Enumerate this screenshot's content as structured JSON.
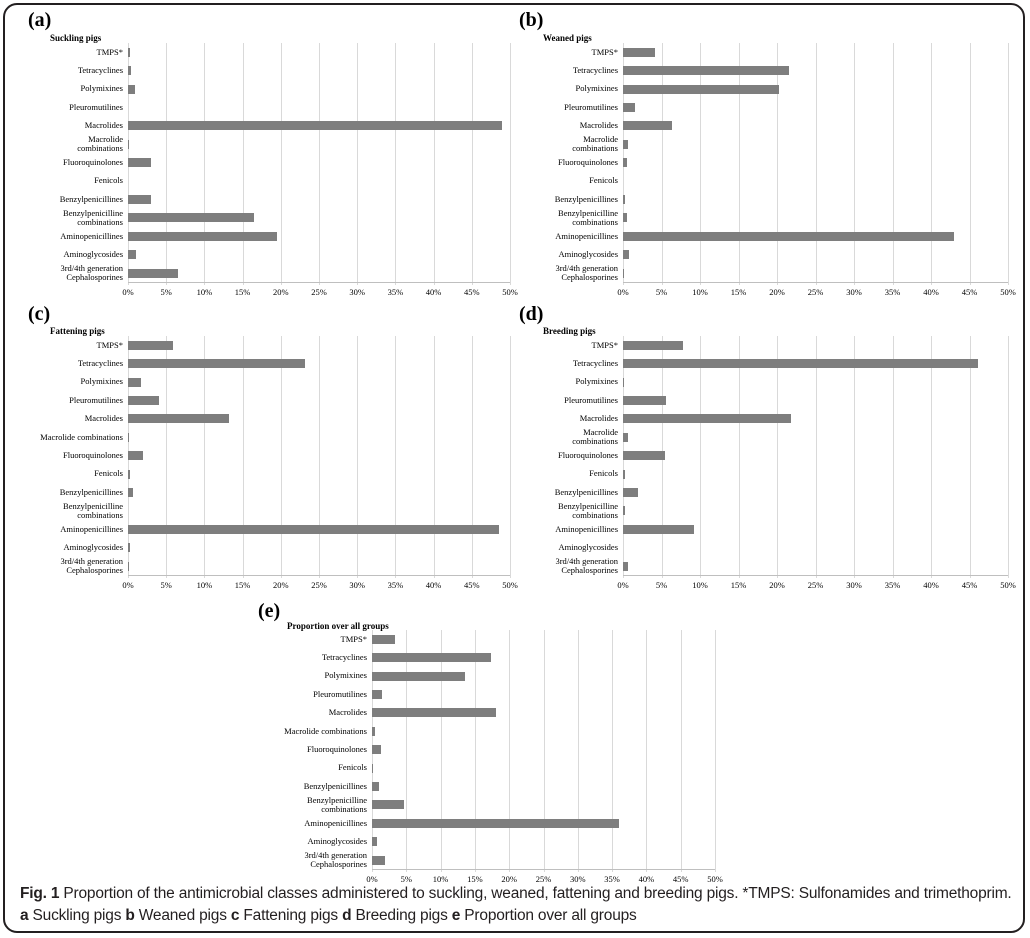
{
  "figure_caption": {
    "fig_label": "Fig. 1",
    "text": "Proportion of the antimicrobial classes administered to suckling, weaned, fattening and breeding pigs. *TMPS: Sulfonamides and trimethoprim.",
    "subpanel_refs": [
      {
        "key": "a",
        "label": "Suckling pigs"
      },
      {
        "key": "b",
        "label": "Weaned pigs"
      },
      {
        "key": "c",
        "label": "Fattening pigs"
      },
      {
        "key": "d",
        "label": "Breeding pigs"
      },
      {
        "key": "e",
        "label": "Proportion over all groups"
      }
    ]
  },
  "chart_data": {
    "type": "bar",
    "orientation": "horizontal",
    "categories": [
      "TMPS*",
      "Tetracyclines",
      "Polymixines",
      "Pleuromutilines",
      "Macrolides",
      "Macrolide combinations",
      "Fluoroquinolones",
      "Fenicols",
      "Benzylpenicillines",
      "Benzylpenicilline combinations",
      "Aminopenicillines",
      "Aminoglycosides",
      "3rd/4th generation Cephalosporines"
    ],
    "xlim": [
      0,
      50
    ],
    "xtick_labels": [
      "0%",
      "5%",
      "10%",
      "15%",
      "20%",
      "25%",
      "30%",
      "35%",
      "40%",
      "45%",
      "50%"
    ],
    "grid": true,
    "legend": false,
    "bar_color": "#7e7e7e",
    "gridline_color": "#d9d9d9",
    "axis_color": "#bfbfbf",
    "charts": [
      {
        "panel": "(a)",
        "title": "Suckling pigs",
        "values": [
          0.3,
          0.4,
          0.9,
          0,
          49.0,
          0.1,
          3.0,
          0,
          3.0,
          16.5,
          19.5,
          1.0,
          6.6
        ]
      },
      {
        "panel": "(b)",
        "title": "Weaned pigs",
        "values": [
          4.1,
          21.5,
          20.2,
          1.5,
          6.3,
          0.6,
          0.5,
          0,
          0.2,
          0.5,
          43.0,
          0.8,
          0.1
        ]
      },
      {
        "panel": "(c)",
        "title": "Fattening pigs",
        "values": [
          5.9,
          23.2,
          1.7,
          4.1,
          13.2,
          0.1,
          1.9,
          0.2,
          0.7,
          0,
          48.5,
          0.2,
          0.1
        ]
      },
      {
        "panel": "(d)",
        "title": "Breeding pigs",
        "values": [
          7.8,
          46.1,
          0.1,
          5.6,
          21.8,
          0.6,
          5.4,
          0.2,
          2.0,
          0.2,
          9.2,
          0,
          0.6
        ]
      },
      {
        "panel": "(e)",
        "title": "Proportion over all groups",
        "values": [
          3.4,
          17.3,
          13.5,
          1.4,
          18.1,
          0.5,
          1.3,
          0.1,
          1.0,
          4.6,
          36.0,
          0.8,
          1.9
        ]
      }
    ]
  }
}
